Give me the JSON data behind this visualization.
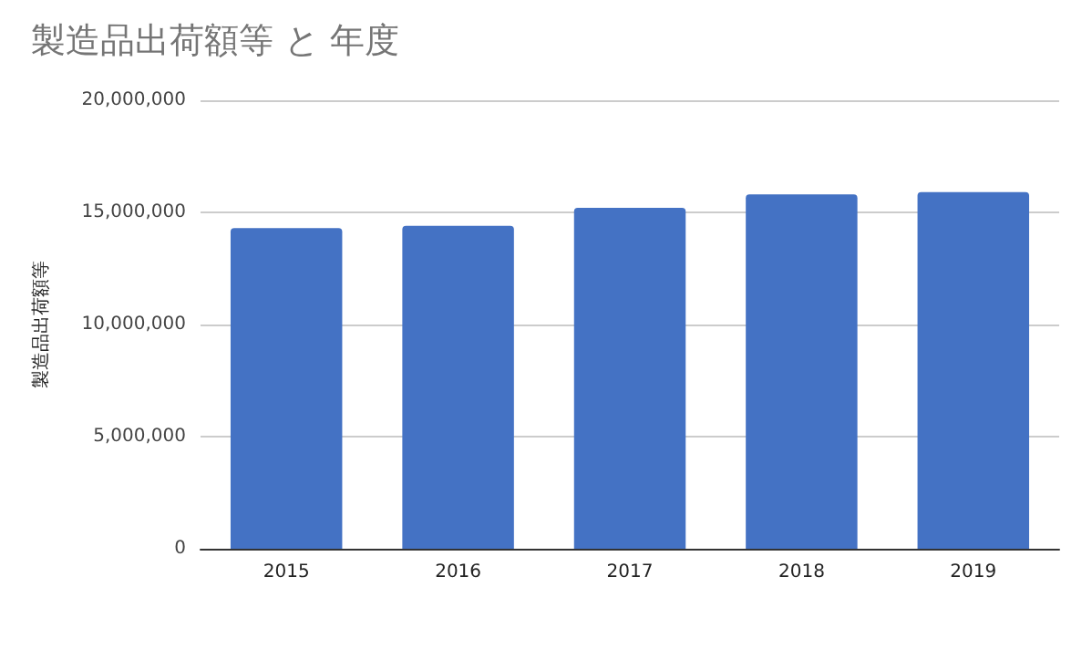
{
  "chart_data": {
    "type": "bar",
    "title": "製造品出荷額等 と 年度",
    "ylabel": "製造品出荷額等",
    "categories": [
      "2015",
      "2016",
      "2017",
      "2018",
      "2019"
    ],
    "values": [
      14300000,
      14400000,
      15200000,
      15800000,
      15900000
    ],
    "color": "#4472c4",
    "ylim": [
      0,
      20000000
    ],
    "yticks": [
      0,
      {
        "value": 5000000,
        "label": "5,000,000"
      },
      {
        "value": 10000000,
        "label": "10,000,000"
      },
      {
        "value": 15000000,
        "label": "15,000,000"
      },
      {
        "value": 20000000,
        "label": "20,000,000"
      }
    ],
    "grid": "y"
  }
}
